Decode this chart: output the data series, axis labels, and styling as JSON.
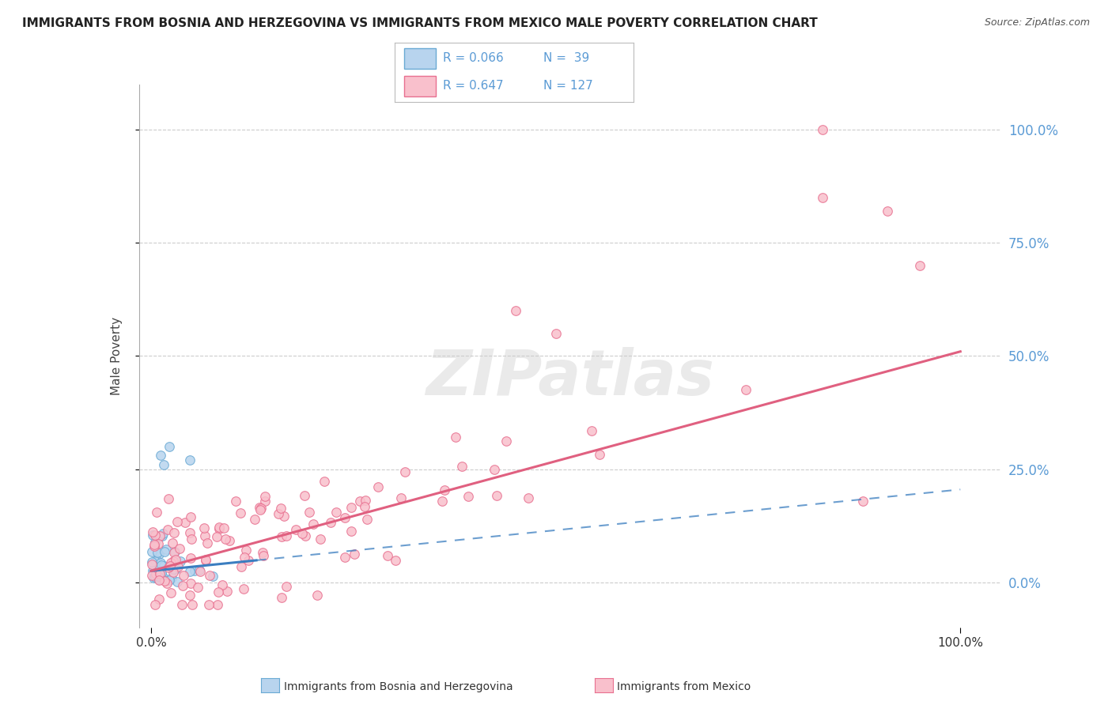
{
  "title": "IMMIGRANTS FROM BOSNIA AND HERZEGOVINA VS IMMIGRANTS FROM MEXICO MALE POVERTY CORRELATION CHART",
  "source": "Source: ZipAtlas.com",
  "ylabel": "Male Poverty",
  "ytick_labels": [
    "0.0%",
    "25.0%",
    "50.0%",
    "75.0%",
    "100.0%"
  ],
  "ytick_vals": [
    0.0,
    0.25,
    0.5,
    0.75,
    1.0
  ],
  "xtick_labels": [
    "0.0%",
    "100.0%"
  ],
  "xtick_vals": [
    0.0,
    1.0
  ],
  "bosnia_R": 0.066,
  "bosnia_N": 39,
  "mexico_R": 0.647,
  "mexico_N": 127,
  "bosnia_fill_color": "#b8d4ee",
  "mexico_fill_color": "#f9c0cc",
  "bosnia_edge_color": "#6aaad4",
  "mexico_edge_color": "#e87090",
  "bosnia_line_color": "#3b7ec0",
  "mexico_line_color": "#e06080",
  "watermark": "ZIPatlas",
  "background_color": "#ffffff",
  "grid_color": "#cccccc",
  "right_tick_color": "#5b9bd5",
  "legend_text_color": "#5b9bd5"
}
